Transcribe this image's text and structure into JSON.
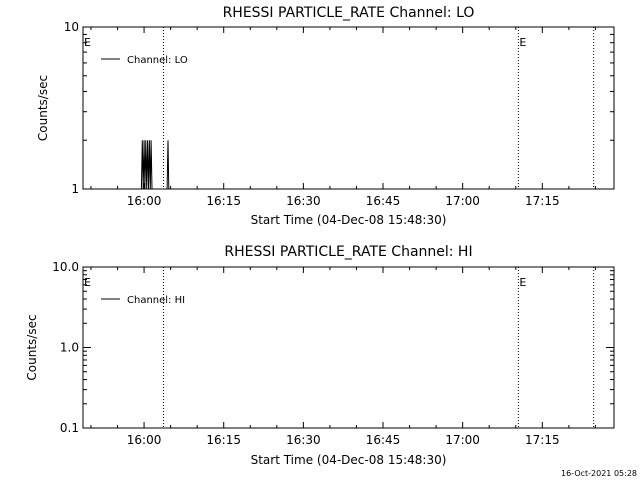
{
  "chart_data": [
    {
      "type": "line",
      "title": "RHESSI PARTICLE_RATE Channel: LO",
      "xlabel": "Start Time (04-Dec-08 15:48:30)",
      "ylabel": "Counts/sec",
      "yscale": "log",
      "ylim": [
        1,
        10
      ],
      "yticks": [
        "1",
        "10"
      ],
      "xticks": [
        "16:00",
        "16:15",
        "16:30",
        "16:45",
        "17:00",
        "17:15"
      ],
      "xlim": [
        "15:48:30",
        "17:28:30"
      ],
      "grid": false,
      "legend": {
        "placement": "top-left",
        "entries": [
          "Channel: LO"
        ]
      },
      "event_markers": [
        {
          "time": "15:48:30",
          "label": "E"
        },
        {
          "time": "16:03:40",
          "label": ""
        },
        {
          "time": "17:10:30",
          "label": "E"
        },
        {
          "time": "17:24:40",
          "label": ""
        }
      ],
      "series": [
        {
          "name": "Channel: LO",
          "points": [
            [
              "15:59:30",
              1
            ],
            [
              "15:59:40",
              2
            ],
            [
              "15:59:50",
              1
            ],
            [
              "16:00:00",
              2
            ],
            [
              "16:00:10",
              1
            ],
            [
              "16:00:20",
              2
            ],
            [
              "16:00:30",
              1
            ],
            [
              "16:00:40",
              2
            ],
            [
              "16:00:50",
              1
            ],
            [
              "16:01:00",
              2
            ],
            [
              "16:01:10",
              1
            ],
            [
              "16:01:20",
              2
            ],
            [
              "16:01:30",
              1
            ],
            [
              "16:04:20",
              1
            ],
            [
              "16:04:30",
              2
            ],
            [
              "16:04:40",
              1
            ]
          ]
        }
      ]
    },
    {
      "type": "line",
      "title": "RHESSI PARTICLE_RATE Channel: HI",
      "xlabel": "Start Time (04-Dec-08 15:48:30)",
      "ylabel": "Counts/sec",
      "yscale": "log",
      "ylim": [
        0.1,
        10
      ],
      "yticks": [
        "0.1",
        "1.0",
        "10.0"
      ],
      "xticks": [
        "16:00",
        "16:15",
        "16:30",
        "16:45",
        "17:00",
        "17:15"
      ],
      "xlim": [
        "15:48:30",
        "17:28:30"
      ],
      "grid": false,
      "legend": {
        "placement": "top-left",
        "entries": [
          "Channel: HI"
        ]
      },
      "event_markers": [
        {
          "time": "15:48:30",
          "label": "E"
        },
        {
          "time": "16:03:40",
          "label": ""
        },
        {
          "time": "17:10:30",
          "label": "E"
        },
        {
          "time": "17:24:40",
          "label": ""
        }
      ],
      "series": [
        {
          "name": "Channel: HI",
          "points": []
        }
      ]
    }
  ],
  "footer": {
    "timestamp": "16-Oct-2021 05:28"
  }
}
